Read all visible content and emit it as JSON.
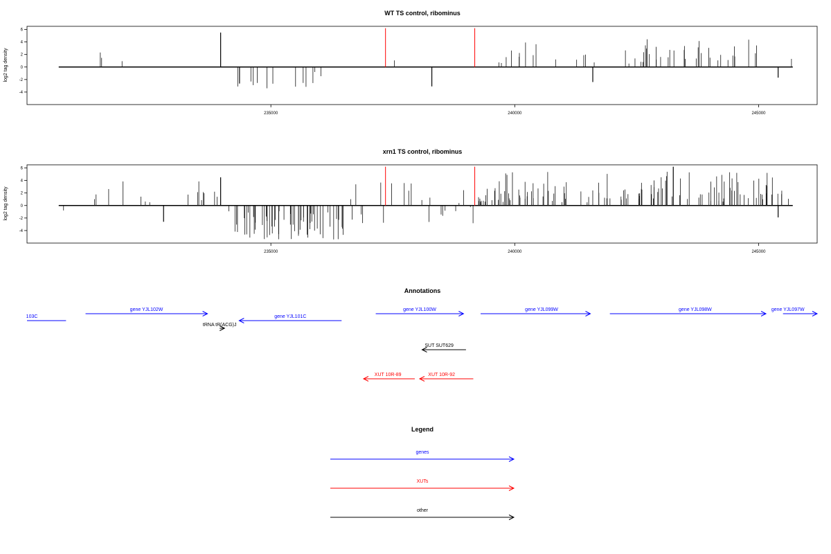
{
  "chart_data": [
    {
      "type": "bar",
      "title": "WT TS control, ribominus",
      "ylabel": "log2 tag density",
      "xlim": [
        230000,
        246200
      ],
      "ylim": [
        -6,
        6.5
      ],
      "yticks": [
        -4,
        -2,
        0,
        2,
        4,
        6
      ],
      "xticks": [
        235000,
        240000,
        245000
      ],
      "grid": false,
      "markers": [
        {
          "x": 237350,
          "color": "#ff0000"
        },
        {
          "x": 239180,
          "color": "#ff0000"
        }
      ],
      "seed": 11,
      "segments": [
        {
          "start": 230650,
          "end": 231300,
          "density": 0.006,
          "min": -2.4,
          "max": -0.8
        },
        {
          "start": 231300,
          "end": 234000,
          "density": 0.018,
          "min": 0.6,
          "max": 3.0
        },
        {
          "start": 233950,
          "end": 234000,
          "density": 0.0,
          "min": 0,
          "max": 0
        },
        {
          "start": 234250,
          "end": 236450,
          "density": 0.09,
          "min": -3.8,
          "max": -0.6
        },
        {
          "start": 236450,
          "end": 238200,
          "density": 0.007,
          "min": 0.6,
          "max": 2.6
        },
        {
          "start": 238200,
          "end": 239200,
          "density": 0.007,
          "min": -3.0,
          "max": -0.8
        },
        {
          "start": 239200,
          "end": 242400,
          "density": 0.07,
          "min": 0.5,
          "max": 4.0
        },
        {
          "start": 242400,
          "end": 245700,
          "density": 0.14,
          "min": 0.8,
          "max": 4.5
        }
      ],
      "spikes": [
        {
          "x": 233970,
          "y": 5.5
        },
        {
          "x": 241600,
          "y": -2.4
        },
        {
          "x": 245400,
          "y": -1.7
        },
        {
          "x": 238300,
          "y": -3.1
        }
      ]
    },
    {
      "type": "bar",
      "title": "xrn1 TS control, ribominus",
      "ylabel": "log2 tag density",
      "xlim": [
        230000,
        246200
      ],
      "ylim": [
        -6,
        6.5
      ],
      "yticks": [
        -4,
        -2,
        0,
        2,
        4,
        6
      ],
      "xticks": [
        235000,
        240000,
        245000
      ],
      "grid": false,
      "markers": [
        {
          "x": 237350,
          "color": "#ff0000"
        },
        {
          "x": 239180,
          "color": "#ff0000"
        }
      ],
      "seed": 29,
      "segments": [
        {
          "start": 230650,
          "end": 231050,
          "density": 0.05,
          "min": -2.7,
          "max": -0.6
        },
        {
          "start": 231300,
          "end": 234000,
          "density": 0.08,
          "min": 0.5,
          "max": 4.0
        },
        {
          "start": 234000,
          "end": 234150,
          "density": 0.05,
          "min": -2.5,
          "max": -0.5
        },
        {
          "start": 234250,
          "end": 236550,
          "density": 0.35,
          "min": -5.5,
          "max": -0.8
        },
        {
          "start": 236550,
          "end": 239200,
          "density": 0.12,
          "min": -3.0,
          "max": 4.0
        },
        {
          "start": 239200,
          "end": 245700,
          "density": 0.28,
          "min": 0.5,
          "max": 5.5
        }
      ],
      "spikes": [
        {
          "x": 233970,
          "y": 4.5
        },
        {
          "x": 232800,
          "y": -2.6
        },
        {
          "x": 243250,
          "y": 6.2
        },
        {
          "x": 245400,
          "y": -1.9
        }
      ]
    }
  ],
  "annotations": {
    "title": "Annotations",
    "xlim": [
      230000,
      246200
    ],
    "items": [
      {
        "label": "103C",
        "start": 230000,
        "end": 230800,
        "row": 2,
        "dir": "none",
        "color": "#0000ff",
        "label_x": 230100
      },
      {
        "label": "gene YJL102W",
        "start": 231200,
        "end": 233700,
        "row": 1,
        "dir": "right",
        "color": "#0000ff",
        "label_x": 232450
      },
      {
        "label": "gene YJL101C",
        "start": 234350,
        "end": 236450,
        "row": 2,
        "dir": "left",
        "color": "#0000ff",
        "label_x": 235400
      },
      {
        "label": "tRNA tR(ACG)J",
        "start": 233950,
        "end": 234050,
        "row": 3,
        "dir": "right",
        "color": "#000000",
        "label_x": 233950
      },
      {
        "label": "gene YJL100W",
        "start": 237150,
        "end": 238950,
        "row": 1,
        "dir": "right",
        "color": "#0000ff",
        "label_x": 238050
      },
      {
        "label": "gene YJL099W",
        "start": 239300,
        "end": 241550,
        "row": 1,
        "dir": "right",
        "color": "#0000ff",
        "label_x": 240550
      },
      {
        "label": "gene YJL098W",
        "start": 241950,
        "end": 245150,
        "row": 1,
        "dir": "right",
        "color": "#0000ff",
        "label_x": 243700
      },
      {
        "label": "gene YJL097W",
        "start": 245500,
        "end": 246200,
        "row": 1,
        "dir": "right",
        "color": "#0000ff",
        "label_x": 245600
      },
      {
        "label": "SUT SUT629",
        "start": 238100,
        "end": 239000,
        "row": 4,
        "dir": "left",
        "color": "#000000",
        "label_x": 238450
      },
      {
        "label": "XUT 10R-89",
        "start": 236900,
        "end": 237950,
        "row": 5,
        "dir": "left",
        "color": "#ff0000",
        "label_x": 237400
      },
      {
        "label": "XUT 10R-92",
        "start": 238050,
        "end": 239150,
        "row": 5,
        "dir": "left",
        "color": "#ff0000",
        "label_x": 238500
      }
    ]
  },
  "legend": {
    "title": "Legend",
    "entries": [
      {
        "label": "genes",
        "color": "#0000ff"
      },
      {
        "label": "XUTs",
        "color": "#ff0000"
      },
      {
        "label": "other",
        "color": "#000000"
      }
    ]
  }
}
